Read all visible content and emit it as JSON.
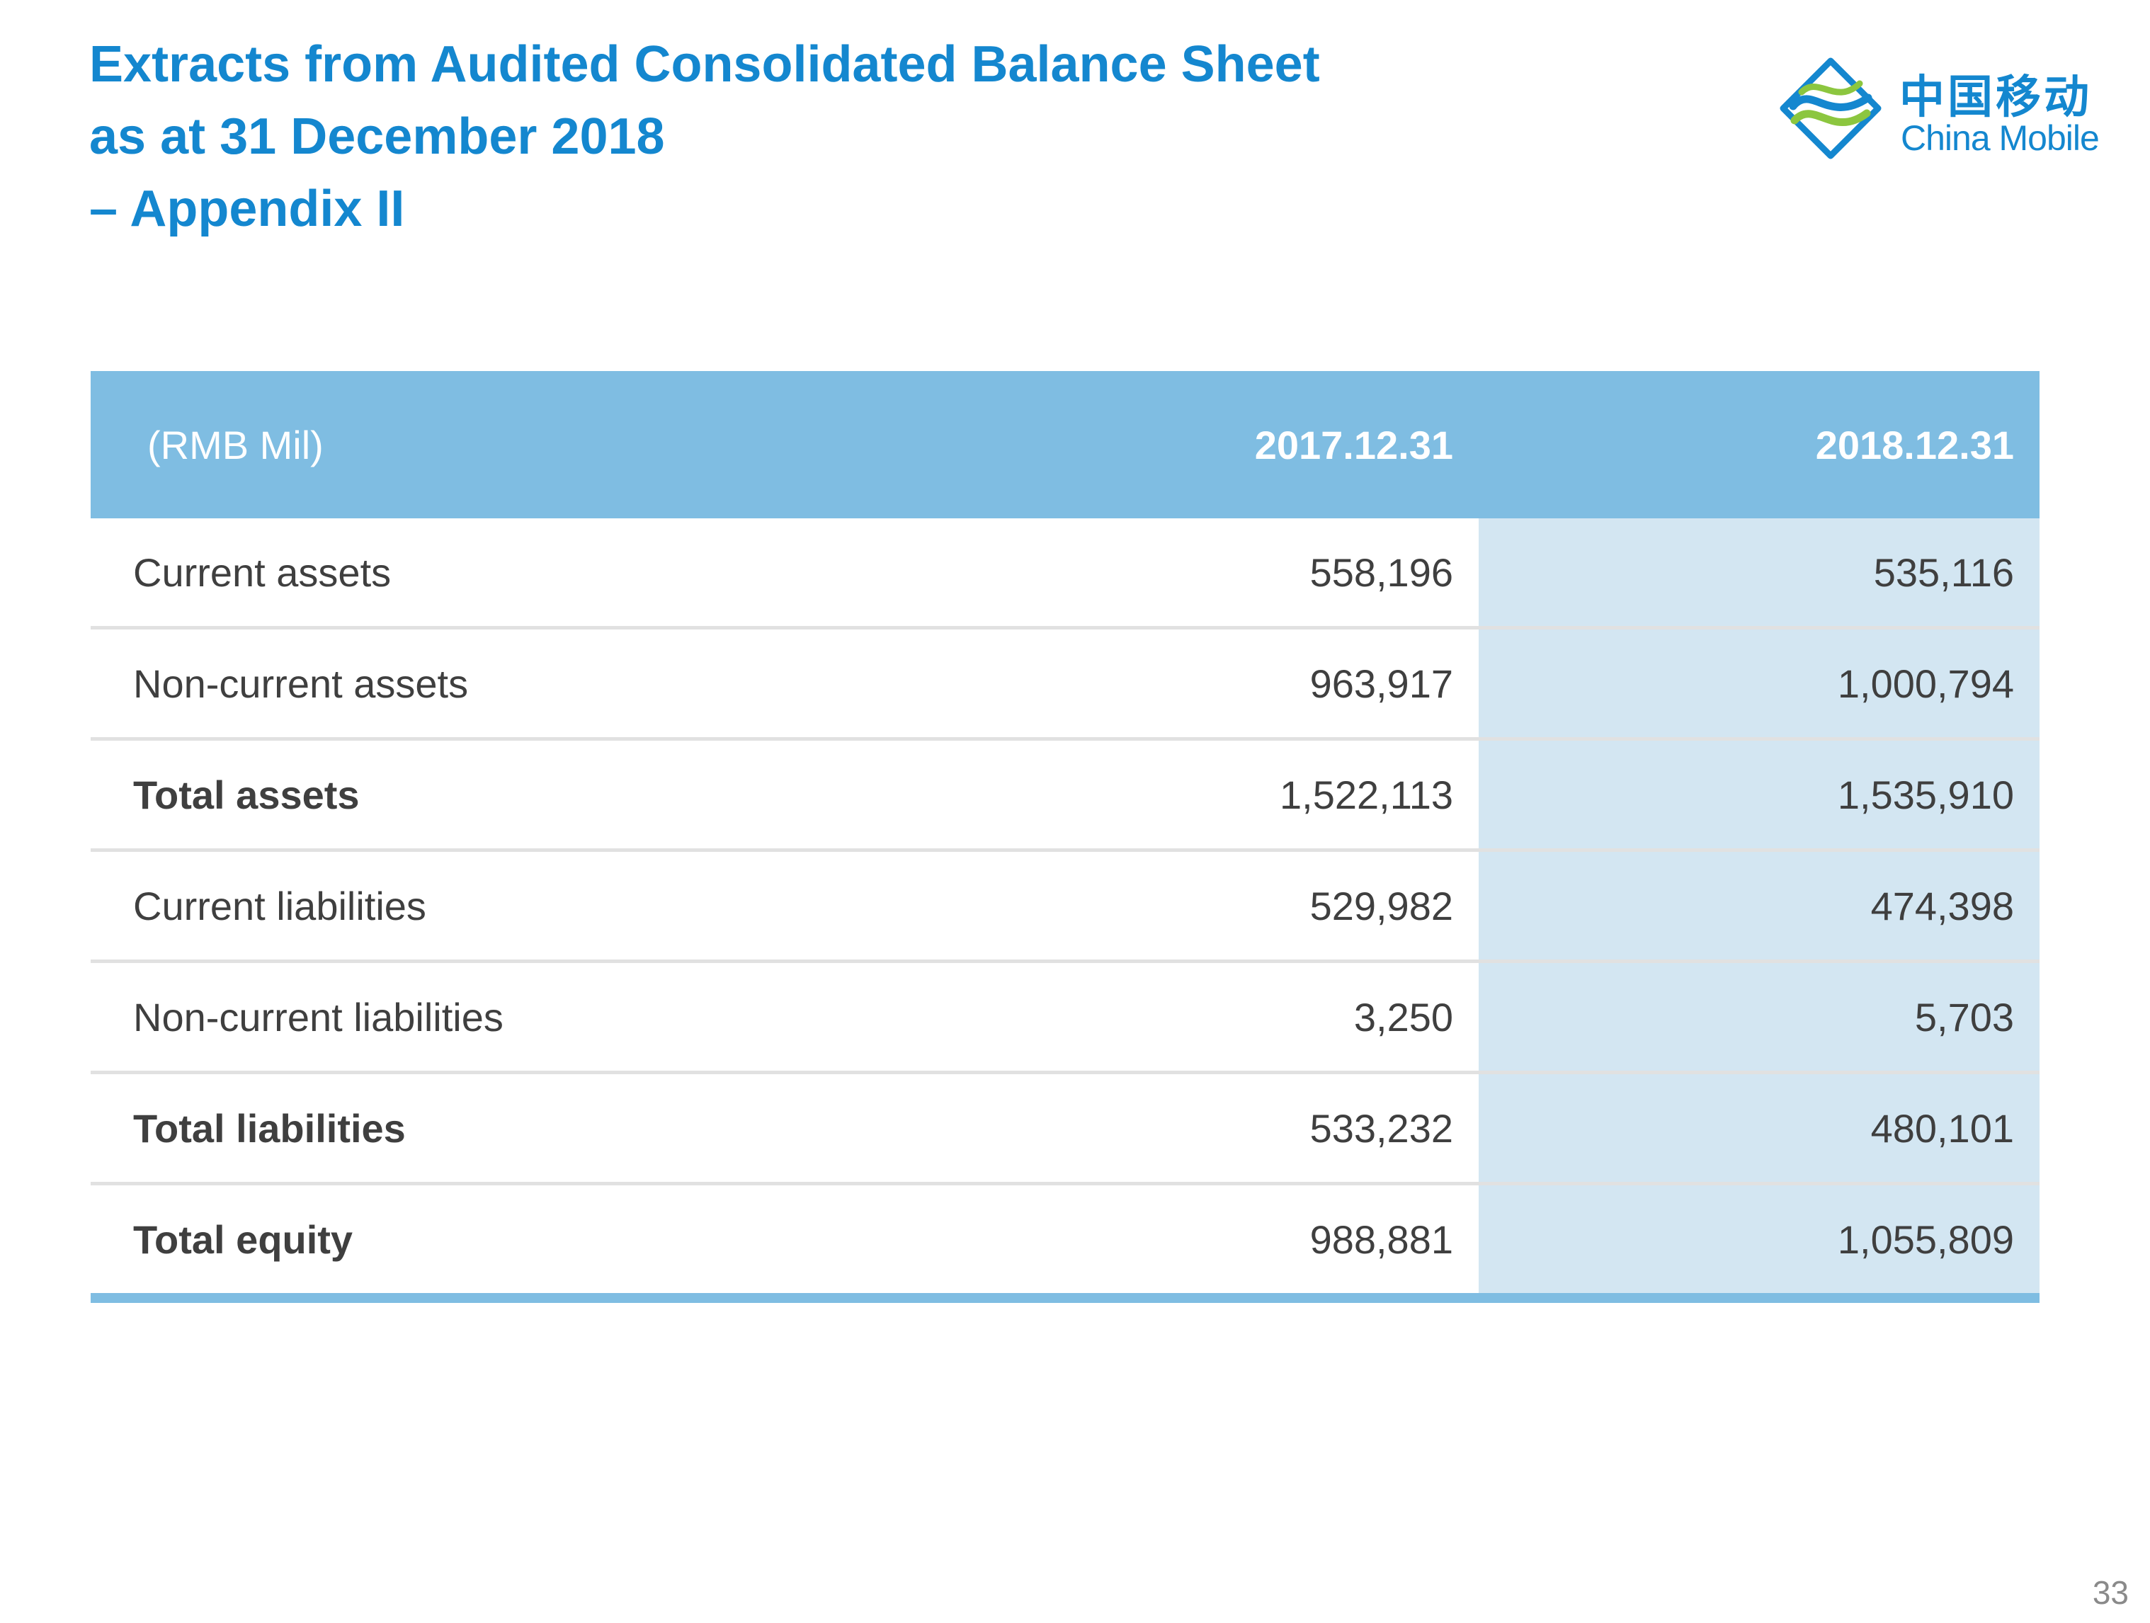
{
  "title": {
    "line1": "Extracts from Audited Consolidated Balance Sheet",
    "line2": "as at 31 December 2018",
    "line3": "– Appendix II"
  },
  "logo": {
    "chinese": "中国移动",
    "english": "China Mobile",
    "colors": {
      "blue": "#1487cf",
      "green": "#8cc63f"
    }
  },
  "table": {
    "headers": {
      "label": "(RMB Mil)",
      "col1": "2017.12.31",
      "col2": "2018.12.31"
    },
    "rows": [
      {
        "label": "Current assets",
        "v2017": "558,196",
        "v2018": "535,116",
        "bold": false
      },
      {
        "label": "Non-current assets",
        "v2017": "963,917",
        "v2018": "1,000,794",
        "bold": false
      },
      {
        "label": "Total assets",
        "v2017": "1,522,113",
        "v2018": "1,535,910",
        "bold": true
      },
      {
        "label": "Current liabilities",
        "v2017": "529,982",
        "v2018": "474,398",
        "bold": false
      },
      {
        "label": "Non-current liabilities",
        "v2017": "3,250",
        "v2018": "5,703",
        "bold": false
      },
      {
        "label": "Total liabilities",
        "v2017": "533,232",
        "v2018": "480,101",
        "bold": true
      },
      {
        "label": "Total equity",
        "v2017": "988,881",
        "v2018": "1,055,809",
        "bold": true
      }
    ],
    "colors": {
      "header": "#7fbde2",
      "highlight": "#d3e6f2",
      "divider": "#e1e1e1"
    }
  },
  "page_number": "33"
}
